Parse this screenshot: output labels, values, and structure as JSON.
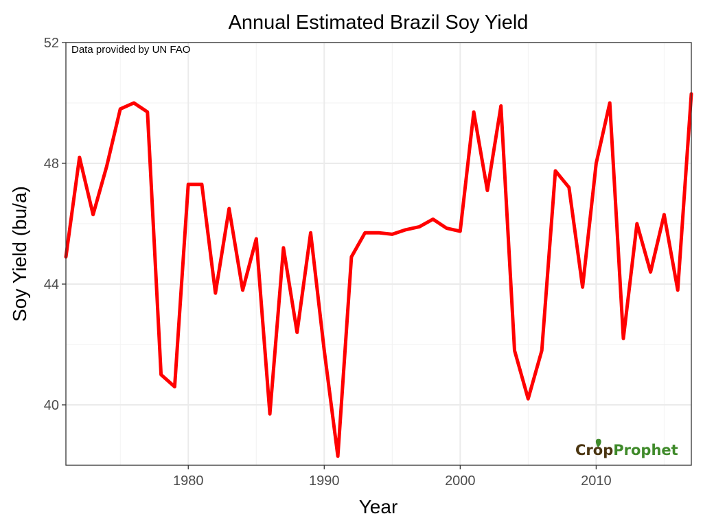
{
  "chart_data": {
    "type": "line",
    "title": "Annual Estimated Brazil Soy Yield",
    "xlabel": "Year",
    "ylabel": "Soy Yield (bu/a)",
    "annotation": "Data provided by UN FAO",
    "logo": {
      "part1": "Crop",
      "part2": "Prophet",
      "color1": "#4a3410",
      "color2": "#3f8a2a"
    },
    "xlim": [
      1971,
      2017
    ],
    "ylim": [
      38,
      52
    ],
    "x_ticks": [
      1980,
      1990,
      2000,
      2010
    ],
    "y_ticks": [
      40,
      44,
      48,
      52
    ],
    "grid": true,
    "line_color": "#ff0000",
    "series": [
      {
        "x": [
          1971,
          1972,
          1973,
          1974,
          1975,
          1976,
          1977,
          1978,
          1979,
          1980,
          1981,
          1982,
          1983,
          1984,
          1985,
          1986,
          1987,
          1988,
          1989,
          1990,
          1991,
          1992,
          1993,
          1994,
          1995,
          1996,
          1997,
          1998,
          1999,
          2000,
          2001,
          2002,
          2003,
          2004,
          2005,
          2006,
          2007,
          2008,
          2009,
          2010,
          2011,
          2012,
          2013,
          2014,
          2015,
          2016,
          2017
        ],
        "values": [
          44.9,
          48.2,
          46.3,
          47.9,
          49.8,
          50.0,
          49.7,
          41.0,
          40.6,
          47.3,
          47.3,
          43.7,
          46.5,
          43.8,
          45.5,
          39.7,
          45.2,
          42.4,
          45.7,
          41.8,
          38.3,
          44.9,
          45.7,
          45.7,
          45.65,
          45.8,
          45.9,
          46.15,
          45.85,
          45.75,
          49.7,
          47.1,
          49.9,
          41.8,
          40.2,
          41.8,
          47.75,
          47.2,
          43.9,
          48.0,
          50.0,
          42.2,
          46.0,
          44.4,
          46.3,
          43.8,
          50.3
        ]
      }
    ]
  }
}
